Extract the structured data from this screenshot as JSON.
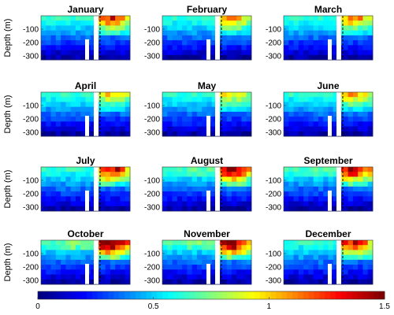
{
  "chart_data": {
    "type": "heatmap",
    "layout": "4x3 small multiples, shared colorbar at bottom",
    "panels": [
      {
        "title": "January"
      },
      {
        "title": "February"
      },
      {
        "title": "March"
      },
      {
        "title": "April"
      },
      {
        "title": "May"
      },
      {
        "title": "June"
      },
      {
        "title": "July"
      },
      {
        "title": "August"
      },
      {
        "title": "September"
      },
      {
        "title": "October"
      },
      {
        "title": "November"
      },
      {
        "title": "December"
      }
    ],
    "ylabel": "Depth (m)",
    "yticks": [
      -100,
      -200,
      -300
    ],
    "ylim": [
      -330,
      0
    ],
    "colorbar": {
      "ticks": [
        "0",
        "0.5",
        "1",
        "1.5"
      ],
      "range": [
        0,
        1.5
      ],
      "colormap": "jet",
      "position": "bottom"
    },
    "features": {
      "white_bars": "two vertical white gaps near center of each panel",
      "dashed_line": "vertical black dashed line to the right of the white gap"
    },
    "seasonal_intensity": [
      0.8,
      0.55,
      0.6,
      0.4,
      0.45,
      0.55,
      0.95,
      1.1,
      1.1,
      1.2,
      1.15,
      0.9
    ]
  }
}
